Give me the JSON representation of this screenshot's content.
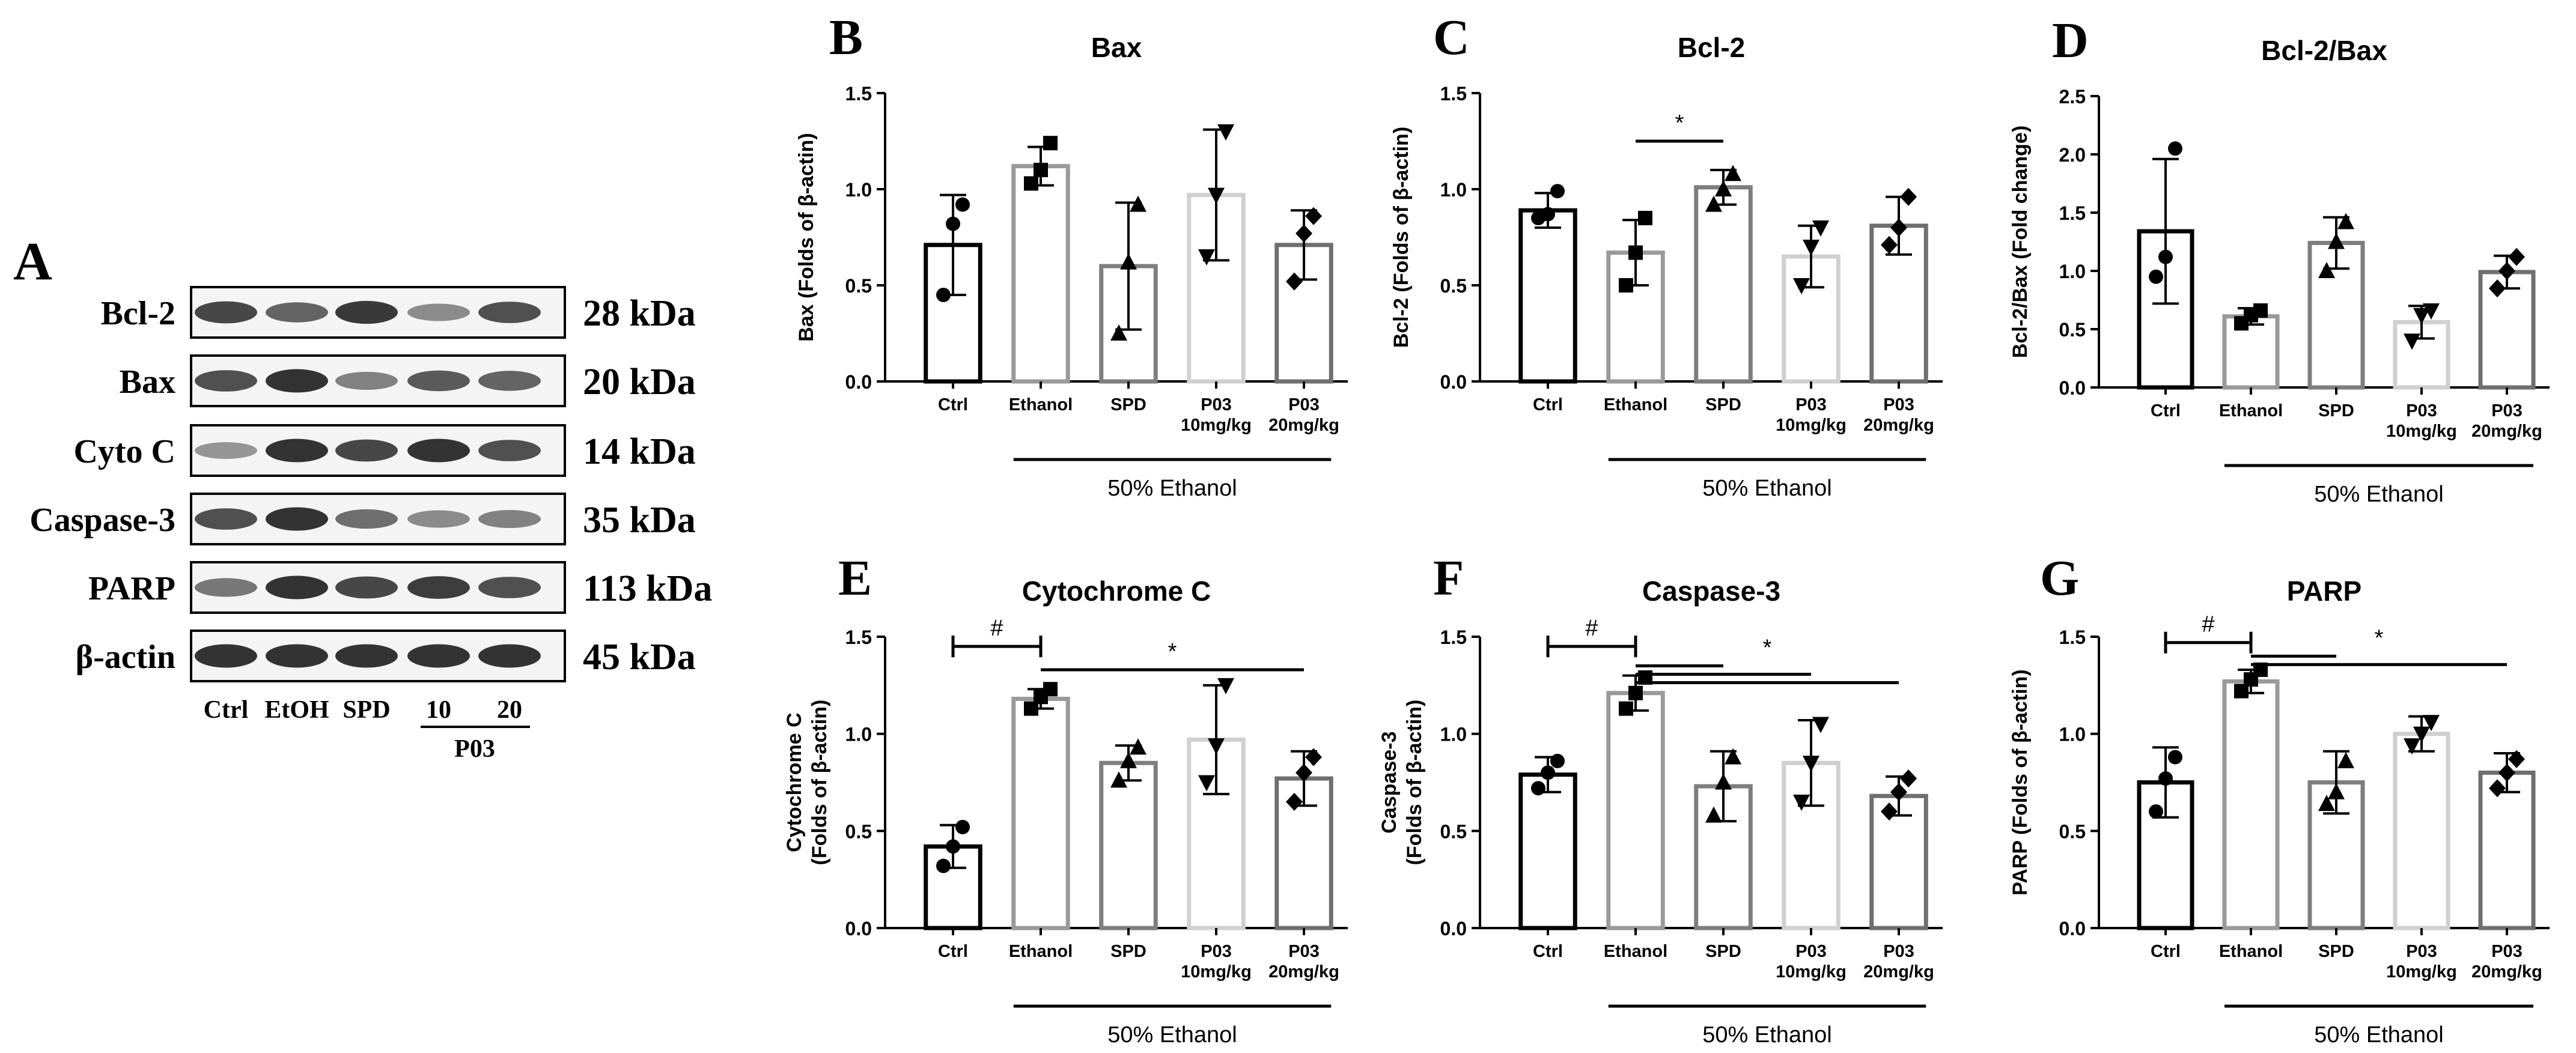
{
  "panel_a": {
    "label": "A",
    "rows": [
      {
        "name": "Bcl-2",
        "kda": "28 kDa",
        "bands": [
          0.85,
          0.7,
          0.92,
          0.5,
          0.8
        ]
      },
      {
        "name": "Bax",
        "kda": "20 kDa",
        "bands": [
          0.8,
          0.95,
          0.55,
          0.75,
          0.7
        ]
      },
      {
        "name": "Cyto C",
        "kda": "14 kDa",
        "bands": [
          0.45,
          0.95,
          0.85,
          0.95,
          0.8
        ]
      },
      {
        "name": "Caspase-3",
        "kda": "35 kDa",
        "bands": [
          0.8,
          0.95,
          0.65,
          0.5,
          0.55
        ]
      },
      {
        "name": "PARP",
        "kda": "113 kDa",
        "bands": [
          0.6,
          0.95,
          0.85,
          0.9,
          0.8
        ]
      },
      {
        "name": "β-actin",
        "kda": "45 kDa",
        "bands": [
          0.95,
          0.95,
          0.95,
          0.95,
          0.95
        ]
      }
    ],
    "lanes": [
      "Ctrl",
      "EtOH",
      "SPD",
      "10",
      "20"
    ],
    "group_label": "P03"
  },
  "bar_colors": [
    "#000000",
    "#9a9a9a",
    "#7e7e7e",
    "#d0d0d0",
    "#6f6f6f"
  ],
  "chart_data": [
    {
      "label": "B",
      "type": "bar",
      "title": "Bax",
      "ylabel": [
        "Bax (Folds of β-actin)"
      ],
      "ylim": [
        0,
        1.5
      ],
      "yticks": [
        "0.0",
        "0.5",
        "1.0",
        "1.5"
      ],
      "categories": [
        [
          "Ctrl"
        ],
        [
          "Ethanol"
        ],
        [
          "SPD"
        ],
        [
          "P03",
          "10mg/kg"
        ],
        [
          "P03",
          "20mg/kg"
        ]
      ],
      "values": [
        0.71,
        1.12,
        0.6,
        0.97,
        0.71
      ],
      "errors": [
        0.26,
        0.1,
        0.33,
        0.34,
        0.18
      ],
      "points": [
        [
          0.45,
          0.82,
          0.92
        ],
        [
          1.03,
          1.1,
          1.24
        ],
        [
          0.25,
          0.62,
          0.92
        ],
        [
          0.65,
          0.97,
          1.3
        ],
        [
          0.52,
          0.77,
          0.86
        ]
      ],
      "markers": [
        "circle",
        "square",
        "triangle",
        "tri-down",
        "diamond"
      ],
      "group_line": "50% Ethanol",
      "comparisons": []
    },
    {
      "label": "C",
      "type": "bar",
      "title": "Bcl-2",
      "ylabel": [
        "Bcl-2 (Folds of β-actin)"
      ],
      "ylim": [
        0,
        1.5
      ],
      "yticks": [
        "0.0",
        "0.5",
        "1.0",
        "1.5"
      ],
      "categories": [
        [
          "Ctrl"
        ],
        [
          "Ethanol"
        ],
        [
          "SPD"
        ],
        [
          "P03",
          "10mg/kg"
        ],
        [
          "P03",
          "20mg/kg"
        ]
      ],
      "values": [
        0.89,
        0.67,
        1.01,
        0.65,
        0.81
      ],
      "errors": [
        0.09,
        0.17,
        0.09,
        0.16,
        0.15
      ],
      "points": [
        [
          0.85,
          0.87,
          0.99
        ],
        [
          0.5,
          0.67,
          0.85
        ],
        [
          0.92,
          1.0,
          1.08
        ],
        [
          0.5,
          0.7,
          0.8
        ],
        [
          0.71,
          0.8,
          0.96
        ]
      ],
      "markers": [
        "circle",
        "square",
        "triangle",
        "tri-down",
        "diamond"
      ],
      "group_line": "50% Ethanol",
      "comparisons": [
        {
          "from": 1,
          "to": [
            2
          ],
          "y": 1.25,
          "symbol": "*",
          "ticks": false
        }
      ]
    },
    {
      "label": "D",
      "type": "bar",
      "title": "Bcl-2/Bax",
      "ylabel": [
        "Bcl-2/Bax (Fold change)"
      ],
      "ylim": [
        0,
        2.5
      ],
      "yticks": [
        "0.0",
        "0.5",
        "1.0",
        "1.5",
        "2.0",
        "2.5"
      ],
      "categories": [
        [
          "Ctrl"
        ],
        [
          "Ethanol"
        ],
        [
          "SPD"
        ],
        [
          "P03",
          "10mg/kg"
        ],
        [
          "P03",
          "20mg/kg"
        ]
      ],
      "values": [
        1.34,
        0.61,
        1.24,
        0.56,
        0.99
      ],
      "errors": [
        0.62,
        0.07,
        0.22,
        0.14,
        0.14
      ],
      "points": [
        [
          0.95,
          1.12,
          2.05
        ],
        [
          0.55,
          0.62,
          0.66
        ],
        [
          1.0,
          1.25,
          1.42
        ],
        [
          0.4,
          0.62,
          0.66
        ],
        [
          0.85,
          1.0,
          1.12
        ]
      ],
      "markers": [
        "circle",
        "square",
        "triangle",
        "tri-down",
        "diamond"
      ],
      "group_line": "50% Ethanol",
      "comparisons": []
    },
    {
      "label": "E",
      "type": "bar",
      "title": "Cytochrome C",
      "ylabel": [
        "Cytochrome C",
        "(Folds of β-actin)"
      ],
      "ylim": [
        0,
        1.5
      ],
      "yticks": [
        "0.0",
        "0.5",
        "1.0",
        "1.5"
      ],
      "categories": [
        [
          "Ctrl"
        ],
        [
          "Ethanol"
        ],
        [
          "SPD"
        ],
        [
          "P03",
          "10mg/kg"
        ],
        [
          "P03",
          "20mg/kg"
        ]
      ],
      "values": [
        0.42,
        1.18,
        0.85,
        0.97,
        0.77
      ],
      "errors": [
        0.11,
        0.05,
        0.09,
        0.28,
        0.14
      ],
      "points": [
        [
          0.32,
          0.42,
          0.52
        ],
        [
          1.13,
          1.19,
          1.23
        ],
        [
          0.76,
          0.86,
          0.93
        ],
        [
          0.75,
          0.94,
          1.25
        ],
        [
          0.65,
          0.8,
          0.88
        ]
      ],
      "markers": [
        "circle",
        "square",
        "triangle",
        "tri-down",
        "diamond"
      ],
      "group_line": "50% Ethanol",
      "comparisons": [
        {
          "from": 0,
          "to": [
            1
          ],
          "y": 1.45,
          "symbol": "#",
          "ticks": true
        },
        {
          "from": 1,
          "to": [
            4
          ],
          "y": 1.33,
          "symbol": "*",
          "ticks": false
        }
      ]
    },
    {
      "label": "F",
      "type": "bar",
      "title": "Caspase-3",
      "ylabel": [
        "Caspase-3",
        "(Folds of β-actin)"
      ],
      "ylim": [
        0,
        1.5
      ],
      "yticks": [
        "0.0",
        "0.5",
        "1.0",
        "1.5"
      ],
      "categories": [
        [
          "Ctrl"
        ],
        [
          "Ethanol"
        ],
        [
          "SPD"
        ],
        [
          "P03",
          "10mg/kg"
        ],
        [
          "P03",
          "20mg/kg"
        ]
      ],
      "values": [
        0.79,
        1.21,
        0.73,
        0.85,
        0.68
      ],
      "errors": [
        0.09,
        0.09,
        0.18,
        0.22,
        0.1
      ],
      "points": [
        [
          0.72,
          0.8,
          0.86
        ],
        [
          1.13,
          1.21,
          1.29
        ],
        [
          0.58,
          0.75,
          0.88
        ],
        [
          0.65,
          0.85,
          1.05
        ],
        [
          0.6,
          0.7,
          0.77
        ]
      ],
      "markers": [
        "circle",
        "square",
        "triangle",
        "tri-down",
        "diamond"
      ],
      "group_line": "50% Ethanol",
      "comparisons": [
        {
          "from": 0,
          "to": [
            1
          ],
          "y": 1.45,
          "symbol": "#",
          "ticks": true
        },
        {
          "from": 1,
          "to": [
            2,
            3,
            4
          ],
          "y": 1.35,
          "symbol": "*",
          "ticks": false
        }
      ]
    },
    {
      "label": "G",
      "type": "bar",
      "title": "PARP",
      "ylabel": [
        "PARP (Folds of β-actin)"
      ],
      "ylim": [
        0,
        1.5
      ],
      "yticks": [
        "0.0",
        "0.5",
        "1.0",
        "1.5"
      ],
      "categories": [
        [
          "Ctrl"
        ],
        [
          "Ethanol"
        ],
        [
          "SPD"
        ],
        [
          "P03",
          "10mg/kg"
        ],
        [
          "P03",
          "20mg/kg"
        ]
      ],
      "values": [
        0.75,
        1.27,
        0.75,
        1.0,
        0.8
      ],
      "errors": [
        0.18,
        0.06,
        0.16,
        0.09,
        0.1
      ],
      "points": [
        [
          0.6,
          0.77,
          0.88
        ],
        [
          1.22,
          1.28,
          1.33
        ],
        [
          0.64,
          0.7,
          0.86
        ],
        [
          0.94,
          1.0,
          1.06
        ],
        [
          0.72,
          0.8,
          0.87
        ]
      ],
      "markers": [
        "circle",
        "square",
        "triangle",
        "tri-down",
        "diamond"
      ],
      "group_line": "50% Ethanol",
      "comparisons": [
        {
          "from": 0,
          "to": [
            1
          ],
          "y": 1.47,
          "symbol": "#",
          "ticks": true
        },
        {
          "from": 1,
          "to": [
            2,
            4
          ],
          "y": 1.4,
          "symbol": "*",
          "ticks": false
        }
      ]
    }
  ]
}
